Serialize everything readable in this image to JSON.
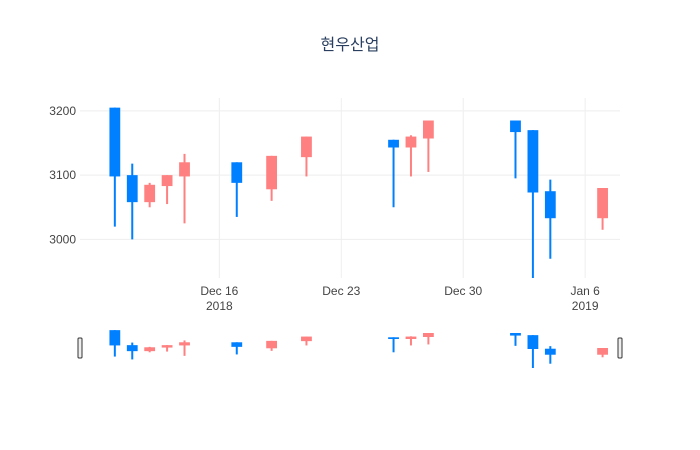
{
  "chart_data": {
    "type": "candlestick",
    "title": "현우산업",
    "xlabel": "",
    "ylabel": "",
    "ylim": [
      2940,
      3220
    ],
    "xlim": [
      "2018-12-08",
      "2019-01-08"
    ],
    "grid": true,
    "rangeslider": true,
    "colors": {
      "increasing": "#ff8080",
      "decreasing": "#0080ff"
    },
    "y_ticks": [
      "3000",
      "3100",
      "3200"
    ],
    "x_ticks": [
      {
        "date": "2018-12-16",
        "label": "Dec 16",
        "sublabel": "2018"
      },
      {
        "date": "2018-12-23",
        "label": "Dec 23",
        "sublabel": ""
      },
      {
        "date": "2018-12-30",
        "label": "Dec 30",
        "sublabel": ""
      },
      {
        "date": "2019-01-06",
        "label": "Jan 6",
        "sublabel": "2019"
      }
    ],
    "candles": [
      {
        "date": "2018-12-10",
        "open": 3205,
        "high": 3205,
        "low": 3020,
        "close": 3098
      },
      {
        "date": "2018-12-11",
        "open": 3100,
        "high": 3118,
        "low": 3000,
        "close": 3058
      },
      {
        "date": "2018-12-12",
        "open": 3058,
        "high": 3088,
        "low": 3050,
        "close": 3085
      },
      {
        "date": "2018-12-13",
        "open": 3083,
        "high": 3100,
        "low": 3055,
        "close": 3100
      },
      {
        "date": "2018-12-14",
        "open": 3098,
        "high": 3133,
        "low": 3025,
        "close": 3120
      },
      {
        "date": "2018-12-17",
        "open": 3120,
        "high": 3120,
        "low": 3035,
        "close": 3088
      },
      {
        "date": "2018-12-19",
        "open": 3078,
        "high": 3130,
        "low": 3060,
        "close": 3130
      },
      {
        "date": "2018-12-21",
        "open": 3128,
        "high": 3160,
        "low": 3098,
        "close": 3160
      },
      {
        "date": "2018-12-26",
        "open": 3155,
        "high": 3155,
        "low": 3050,
        "close": 3143
      },
      {
        "date": "2018-12-27",
        "open": 3143,
        "high": 3162,
        "low": 3098,
        "close": 3160
      },
      {
        "date": "2018-12-28",
        "open": 3157,
        "high": 3185,
        "low": 3105,
        "close": 3185
      },
      {
        "date": "2019-01-02",
        "open": 3185,
        "high": 3185,
        "low": 3095,
        "close": 3167
      },
      {
        "date": "2019-01-03",
        "open": 3170,
        "high": 3170,
        "low": 2940,
        "close": 3073
      },
      {
        "date": "2019-01-04",
        "open": 3075,
        "high": 3093,
        "low": 2970,
        "close": 3033
      },
      {
        "date": "2019-01-07",
        "open": 3033,
        "high": 3080,
        "low": 3015,
        "close": 3080
      }
    ]
  }
}
